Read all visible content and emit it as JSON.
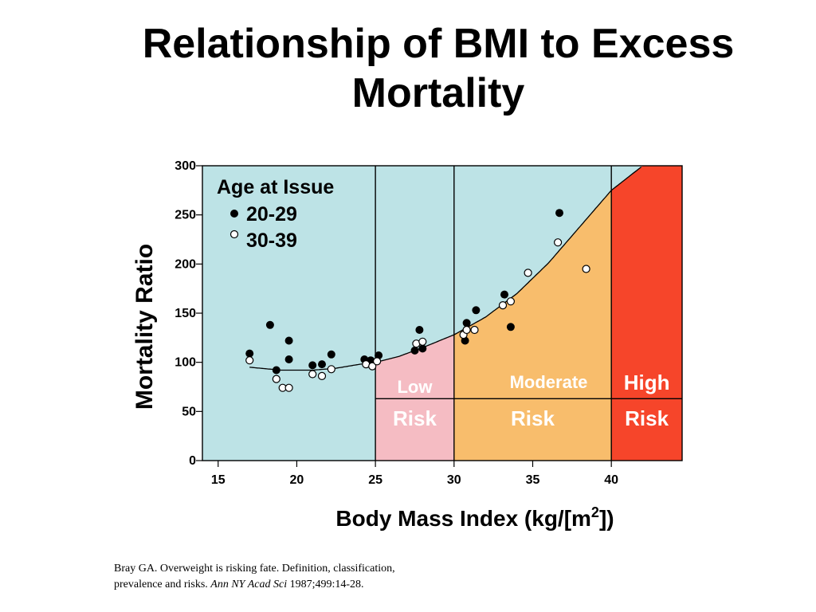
{
  "title_line1": "Relationship of BMI to Excess",
  "title_line2": "Mortality",
  "citation": {
    "line1": "Bray GA.  Overweight is risking fate.  Definition,  classification,",
    "line2_prefix": "prevalence and risks.  ",
    "journal": "Ann NY Acad Sci",
    "line2_suffix": " 1987;499:14-28."
  },
  "colors": {
    "baseline_bg": "#bde3e6",
    "low_risk": "#f5bcc3",
    "moderate_risk": "#f8bd6c",
    "high_risk": "#f6452a"
  },
  "chart_data": {
    "type": "scatter",
    "xlabel": "Body Mass Index (kg/[m2])",
    "xlabel_main": "Body Mass Index (kg/[m",
    "xlabel_sup": "2",
    "xlabel_end": "])",
    "ylabel": "Mortality Ratio",
    "xlim": [
      14,
      44.5
    ],
    "ylim": [
      0,
      300
    ],
    "x_ticks": [
      15,
      20,
      25,
      30,
      35,
      40
    ],
    "y_ticks": [
      0,
      50,
      100,
      150,
      200,
      250,
      300
    ],
    "legend": {
      "title": "Age at Issue",
      "position": "top-left",
      "entries": [
        "20-29",
        "30-39"
      ]
    },
    "zones": [
      {
        "label_top": "Low",
        "label_bottom": "Risk",
        "x_from": 25,
        "x_to": 30,
        "color": "#f5bcc3"
      },
      {
        "label_top": "Moderate",
        "label_bottom": "Risk",
        "x_from": 30,
        "x_to": 40,
        "color": "#f8bd6c"
      },
      {
        "label_top": "High",
        "label_bottom": "Risk",
        "x_from": 40,
        "x_to": 44.5,
        "color": "#f6452a"
      }
    ],
    "zone_divider_y": 63,
    "series": [
      {
        "name": "20-29",
        "marker": "filled",
        "points": [
          [
            17,
            109
          ],
          [
            18.3,
            138
          ],
          [
            18.7,
            92
          ],
          [
            19.5,
            122
          ],
          [
            19.5,
            103
          ],
          [
            21,
            97
          ],
          [
            21.6,
            98
          ],
          [
            22.2,
            108
          ],
          [
            24.3,
            103
          ],
          [
            24.7,
            102
          ],
          [
            25.2,
            107
          ],
          [
            27.5,
            112
          ],
          [
            27.8,
            133
          ],
          [
            28,
            114
          ],
          [
            30.7,
            122
          ],
          [
            30.8,
            140
          ],
          [
            31.4,
            153
          ],
          [
            33.2,
            169
          ],
          [
            33.6,
            136
          ],
          [
            36.7,
            252
          ]
        ]
      },
      {
        "name": "30-39",
        "marker": "open",
        "points": [
          [
            17,
            102
          ],
          [
            18.7,
            83
          ],
          [
            19.1,
            74
          ],
          [
            19.5,
            74
          ],
          [
            21,
            88
          ],
          [
            21.6,
            86
          ],
          [
            22.2,
            93
          ],
          [
            24.4,
            98
          ],
          [
            24.8,
            96
          ],
          [
            25.1,
            101
          ],
          [
            27.6,
            119
          ],
          [
            28,
            121
          ],
          [
            30.6,
            128
          ],
          [
            30.8,
            133
          ],
          [
            31.3,
            133
          ],
          [
            33.1,
            158
          ],
          [
            33.6,
            162
          ],
          [
            34.7,
            191
          ],
          [
            36.6,
            222
          ],
          [
            38.4,
            195
          ]
        ]
      }
    ],
    "trend_curve": [
      [
        17,
        95
      ],
      [
        19,
        92
      ],
      [
        21,
        92
      ],
      [
        22.5,
        94
      ],
      [
        24,
        98
      ],
      [
        25,
        100
      ],
      [
        26.5,
        106
      ],
      [
        28,
        115
      ],
      [
        30,
        128
      ],
      [
        32,
        146
      ],
      [
        34,
        170
      ],
      [
        36,
        201
      ],
      [
        38,
        238
      ],
      [
        40,
        275
      ],
      [
        42,
        300
      ]
    ]
  }
}
